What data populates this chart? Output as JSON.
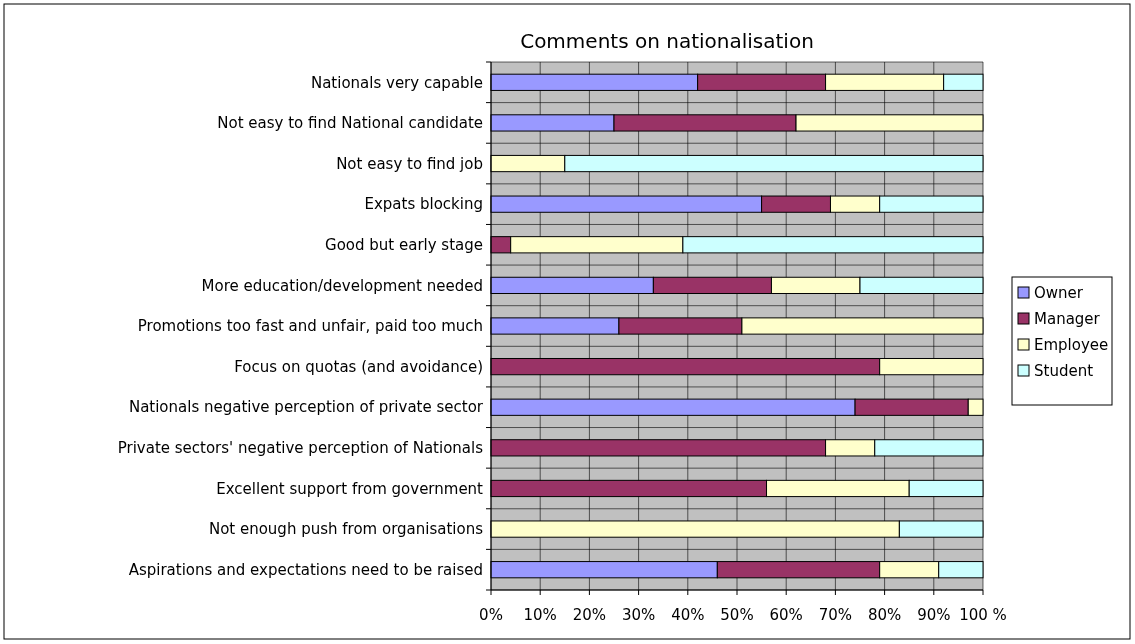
{
  "chart_data": {
    "type": "bar",
    "title": "Comments on nationalisation",
    "orientation": "horizontal",
    "stacked": true,
    "categories": [
      "Nationals very capable",
      "Not easy to find National candidate",
      "Not easy to find job",
      "Expats blocking",
      "Good but early stage",
      "More education/development needed",
      "Promotions too fast and unfair, paid too much",
      "Focus on quotas (and avoidance)",
      "Nationals negative perception of private sector",
      "Private sectors' negative perception of Nationals",
      "Excellent support from government",
      "Not enough push from organisations",
      "Aspirations and expectations need to be raised"
    ],
    "series": [
      {
        "name": "Owner",
        "color": "#9999ff",
        "values": [
          42,
          25,
          0,
          55,
          0,
          33,
          26,
          0,
          74,
          0,
          0,
          0,
          46
        ]
      },
      {
        "name": "Manager",
        "color": "#993366",
        "values": [
          26,
          37,
          0,
          14,
          4,
          24,
          25,
          79,
          23,
          68,
          56,
          0,
          33
        ]
      },
      {
        "name": "Employee",
        "color": "#ffffcc",
        "values": [
          24,
          38,
          15,
          10,
          35,
          18,
          49,
          21,
          3,
          10,
          29,
          83,
          12
        ]
      },
      {
        "name": "Student",
        "color": "#ccffff",
        "values": [
          8,
          0,
          85,
          21,
          61,
          25,
          0,
          0,
          0,
          22,
          15,
          17,
          9
        ]
      }
    ],
    "xlim": [
      0,
      100
    ],
    "xticks": [
      {
        "value": 0,
        "label": "0%"
      },
      {
        "value": 10,
        "label": "10%"
      },
      {
        "value": 20,
        "label": "20%"
      },
      {
        "value": 30,
        "label": "30%"
      },
      {
        "value": 40,
        "label": "40%"
      },
      {
        "value": 50,
        "label": "50%"
      },
      {
        "value": 60,
        "label": "60%"
      },
      {
        "value": 70,
        "label": "70%"
      },
      {
        "value": 80,
        "label": "80%"
      },
      {
        "value": 90,
        "label": "90%"
      },
      {
        "value": 100,
        "label": "100 %"
      }
    ],
    "grid": true,
    "legend": "right"
  }
}
